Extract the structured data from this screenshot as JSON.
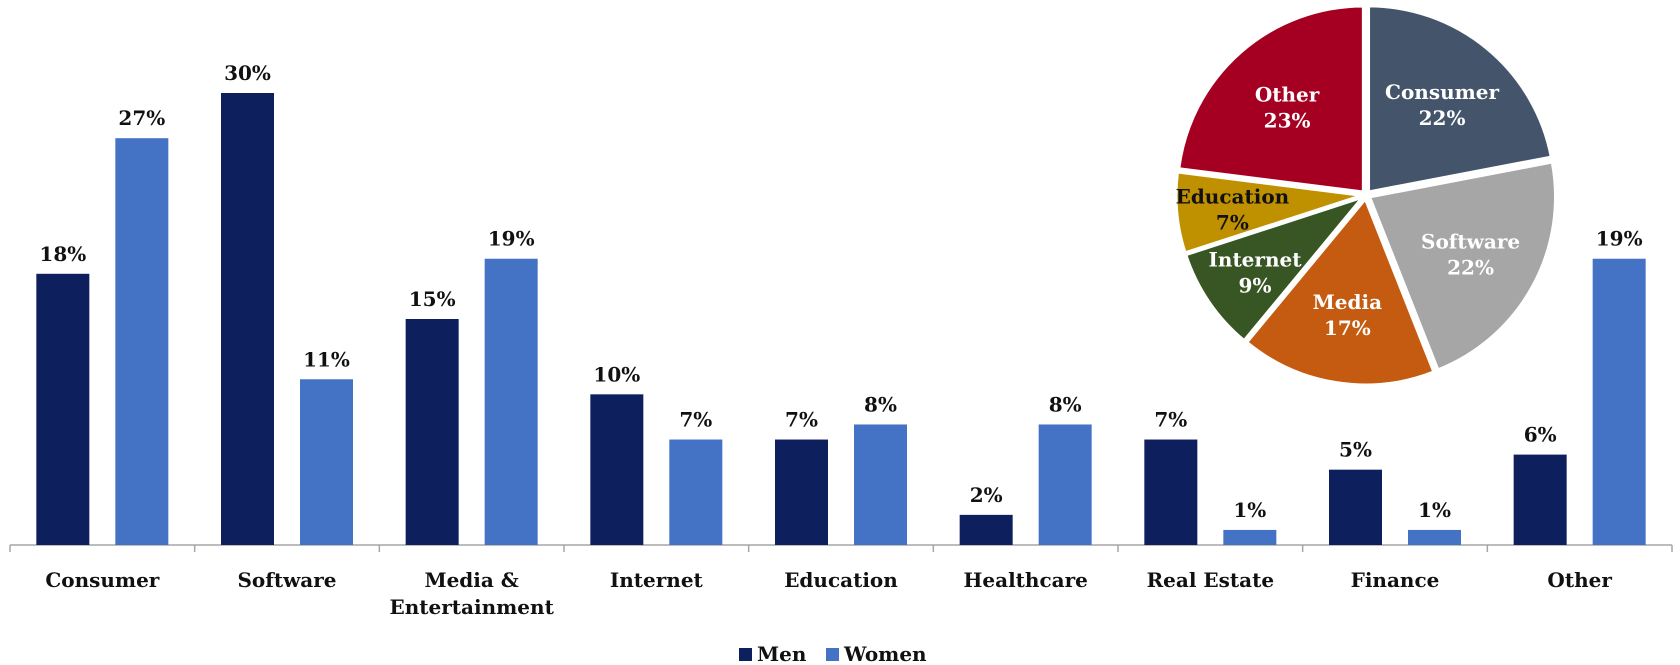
{
  "chart_data": [
    {
      "type": "bar",
      "categories": [
        "Consumer",
        "Software",
        "Media & Entertainment",
        "Internet",
        "Education",
        "Healthcare",
        "Real Estate",
        "Finance",
        "Other"
      ],
      "category_lines": [
        [
          "Consumer"
        ],
        [
          "Software"
        ],
        [
          "Media &",
          "Entertainment"
        ],
        [
          "Internet"
        ],
        [
          "Education"
        ],
        [
          "Healthcare"
        ],
        [
          "Real Estate"
        ],
        [
          "Finance"
        ],
        [
          "Other"
        ]
      ],
      "series": [
        {
          "name": "Men",
          "color": "#0d1f5c",
          "values": [
            18,
            30,
            15,
            10,
            7,
            2,
            7,
            5,
            6
          ],
          "labels": [
            "18%",
            "30%",
            "15%",
            "10%",
            "7%",
            "2%",
            "7%",
            "5%",
            "6%"
          ]
        },
        {
          "name": "Women",
          "color": "#4472c4",
          "values": [
            27,
            11,
            19,
            7,
            8,
            8,
            1,
            1,
            19
          ],
          "labels": [
            "27%",
            "11%",
            "19%",
            "7%",
            "8%",
            "8%",
            "1%",
            "1%",
            "19%"
          ]
        }
      ],
      "ylim": [
        0,
        31
      ],
      "unit": "%",
      "grid": false,
      "legend": "bottom-center"
    },
    {
      "type": "pie",
      "slices": [
        {
          "label": "Consumer",
          "value": 22,
          "value_label": "22%",
          "color": "#44546a",
          "text_color": "#ffffff"
        },
        {
          "label": "Software",
          "value": 22,
          "value_label": "22%",
          "color": "#a6a6a6",
          "text_color": "#ffffff"
        },
        {
          "label": "Media",
          "value": 17,
          "value_label": "17%",
          "color": "#c55a11",
          "text_color": "#ffffff"
        },
        {
          "label": "Internet",
          "value": 9,
          "value_label": "9%",
          "color": "#375623",
          "text_color": "#ffffff"
        },
        {
          "label": "Education",
          "value": 7,
          "value_label": "7%",
          "color": "#bf9000",
          "text_color": "#111111"
        },
        {
          "label": "Other",
          "value": 23,
          "value_label": "23%",
          "color": "#a50021",
          "text_color": "#ffffff"
        }
      ],
      "start": "top",
      "direction": "clockwise"
    }
  ]
}
